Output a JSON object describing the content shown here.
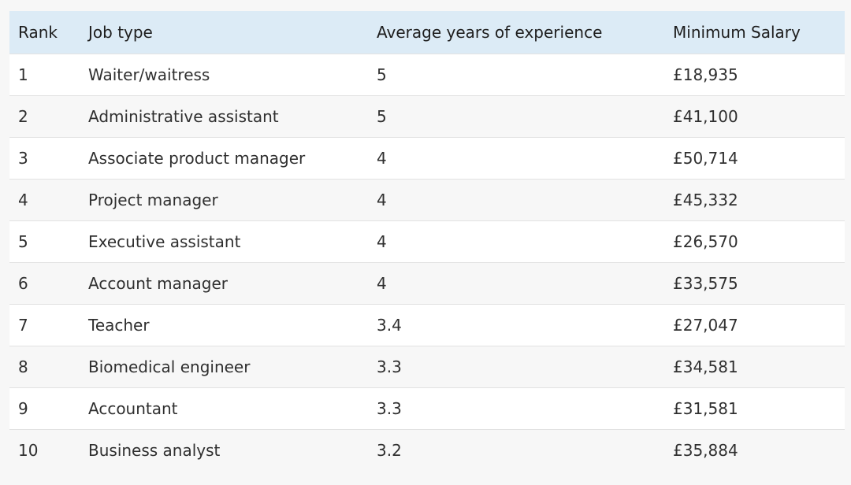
{
  "table": {
    "headers": [
      "Rank",
      "Job type",
      "Average years of experience",
      "Minimum Salary"
    ],
    "rows": [
      [
        "1",
        "Waiter/waitress",
        "5",
        "£18,935"
      ],
      [
        "2",
        "Administrative assistant",
        "5",
        "£41,100"
      ],
      [
        "3",
        "Associate product manager",
        "4",
        "£50,714"
      ],
      [
        "4",
        "Project manager",
        "4",
        "£45,332"
      ],
      [
        "5",
        "Executive assistant",
        "4",
        "£26,570"
      ],
      [
        "6",
        "Account manager",
        "4",
        "£33,575"
      ],
      [
        "7",
        "Teacher",
        "3.4",
        "£27,047"
      ],
      [
        "8",
        "Biomedical engineer",
        "3.3",
        "£34,581"
      ],
      [
        "9",
        "Accountant",
        "3.3",
        "£31,581"
      ],
      [
        "10",
        "Business analyst",
        "3.2",
        "£35,884"
      ]
    ]
  },
  "colors": {
    "header_background": "#dcebf6",
    "row_background_odd": "#ffffff",
    "row_background_even": "#f7f7f7"
  }
}
